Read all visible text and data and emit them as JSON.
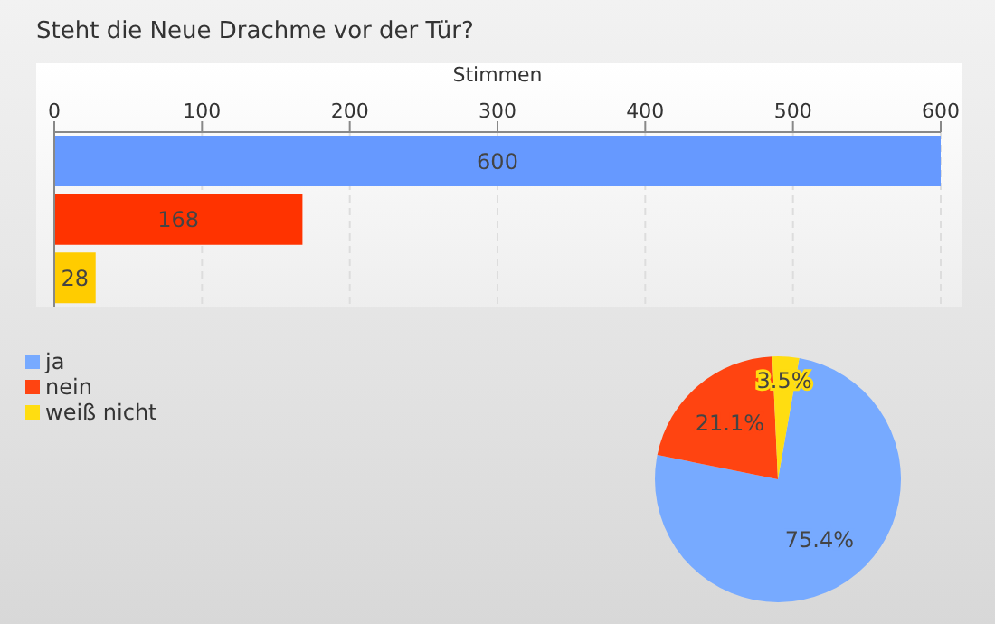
{
  "chart_data": [
    {
      "type": "bar",
      "title": "Steht die Neue Drachme vor der Tür?",
      "xlabel": "Stimmen",
      "orientation": "horizontal",
      "categories": [
        null,
        null,
        null
      ],
      "values": [
        600,
        168,
        28
      ],
      "colors": [
        "#6699ff",
        "#ff3300",
        "#ffcc00"
      ],
      "xlim": [
        0,
        600
      ],
      "xticks": [
        0,
        100,
        200,
        300,
        400,
        500,
        600
      ],
      "grid": "x",
      "data_labels": true
    },
    {
      "type": "pie",
      "categories": [
        "ja",
        "nein",
        "weiß nicht"
      ],
      "values": [
        75.4,
        21.1,
        3.5
      ],
      "colors": [
        "#77aaff",
        "#ff4411",
        "#ffdd11"
      ],
      "value_labels": [
        "75.4%",
        "21.1%",
        "3.5%"
      ],
      "legend": "top left"
    }
  ]
}
